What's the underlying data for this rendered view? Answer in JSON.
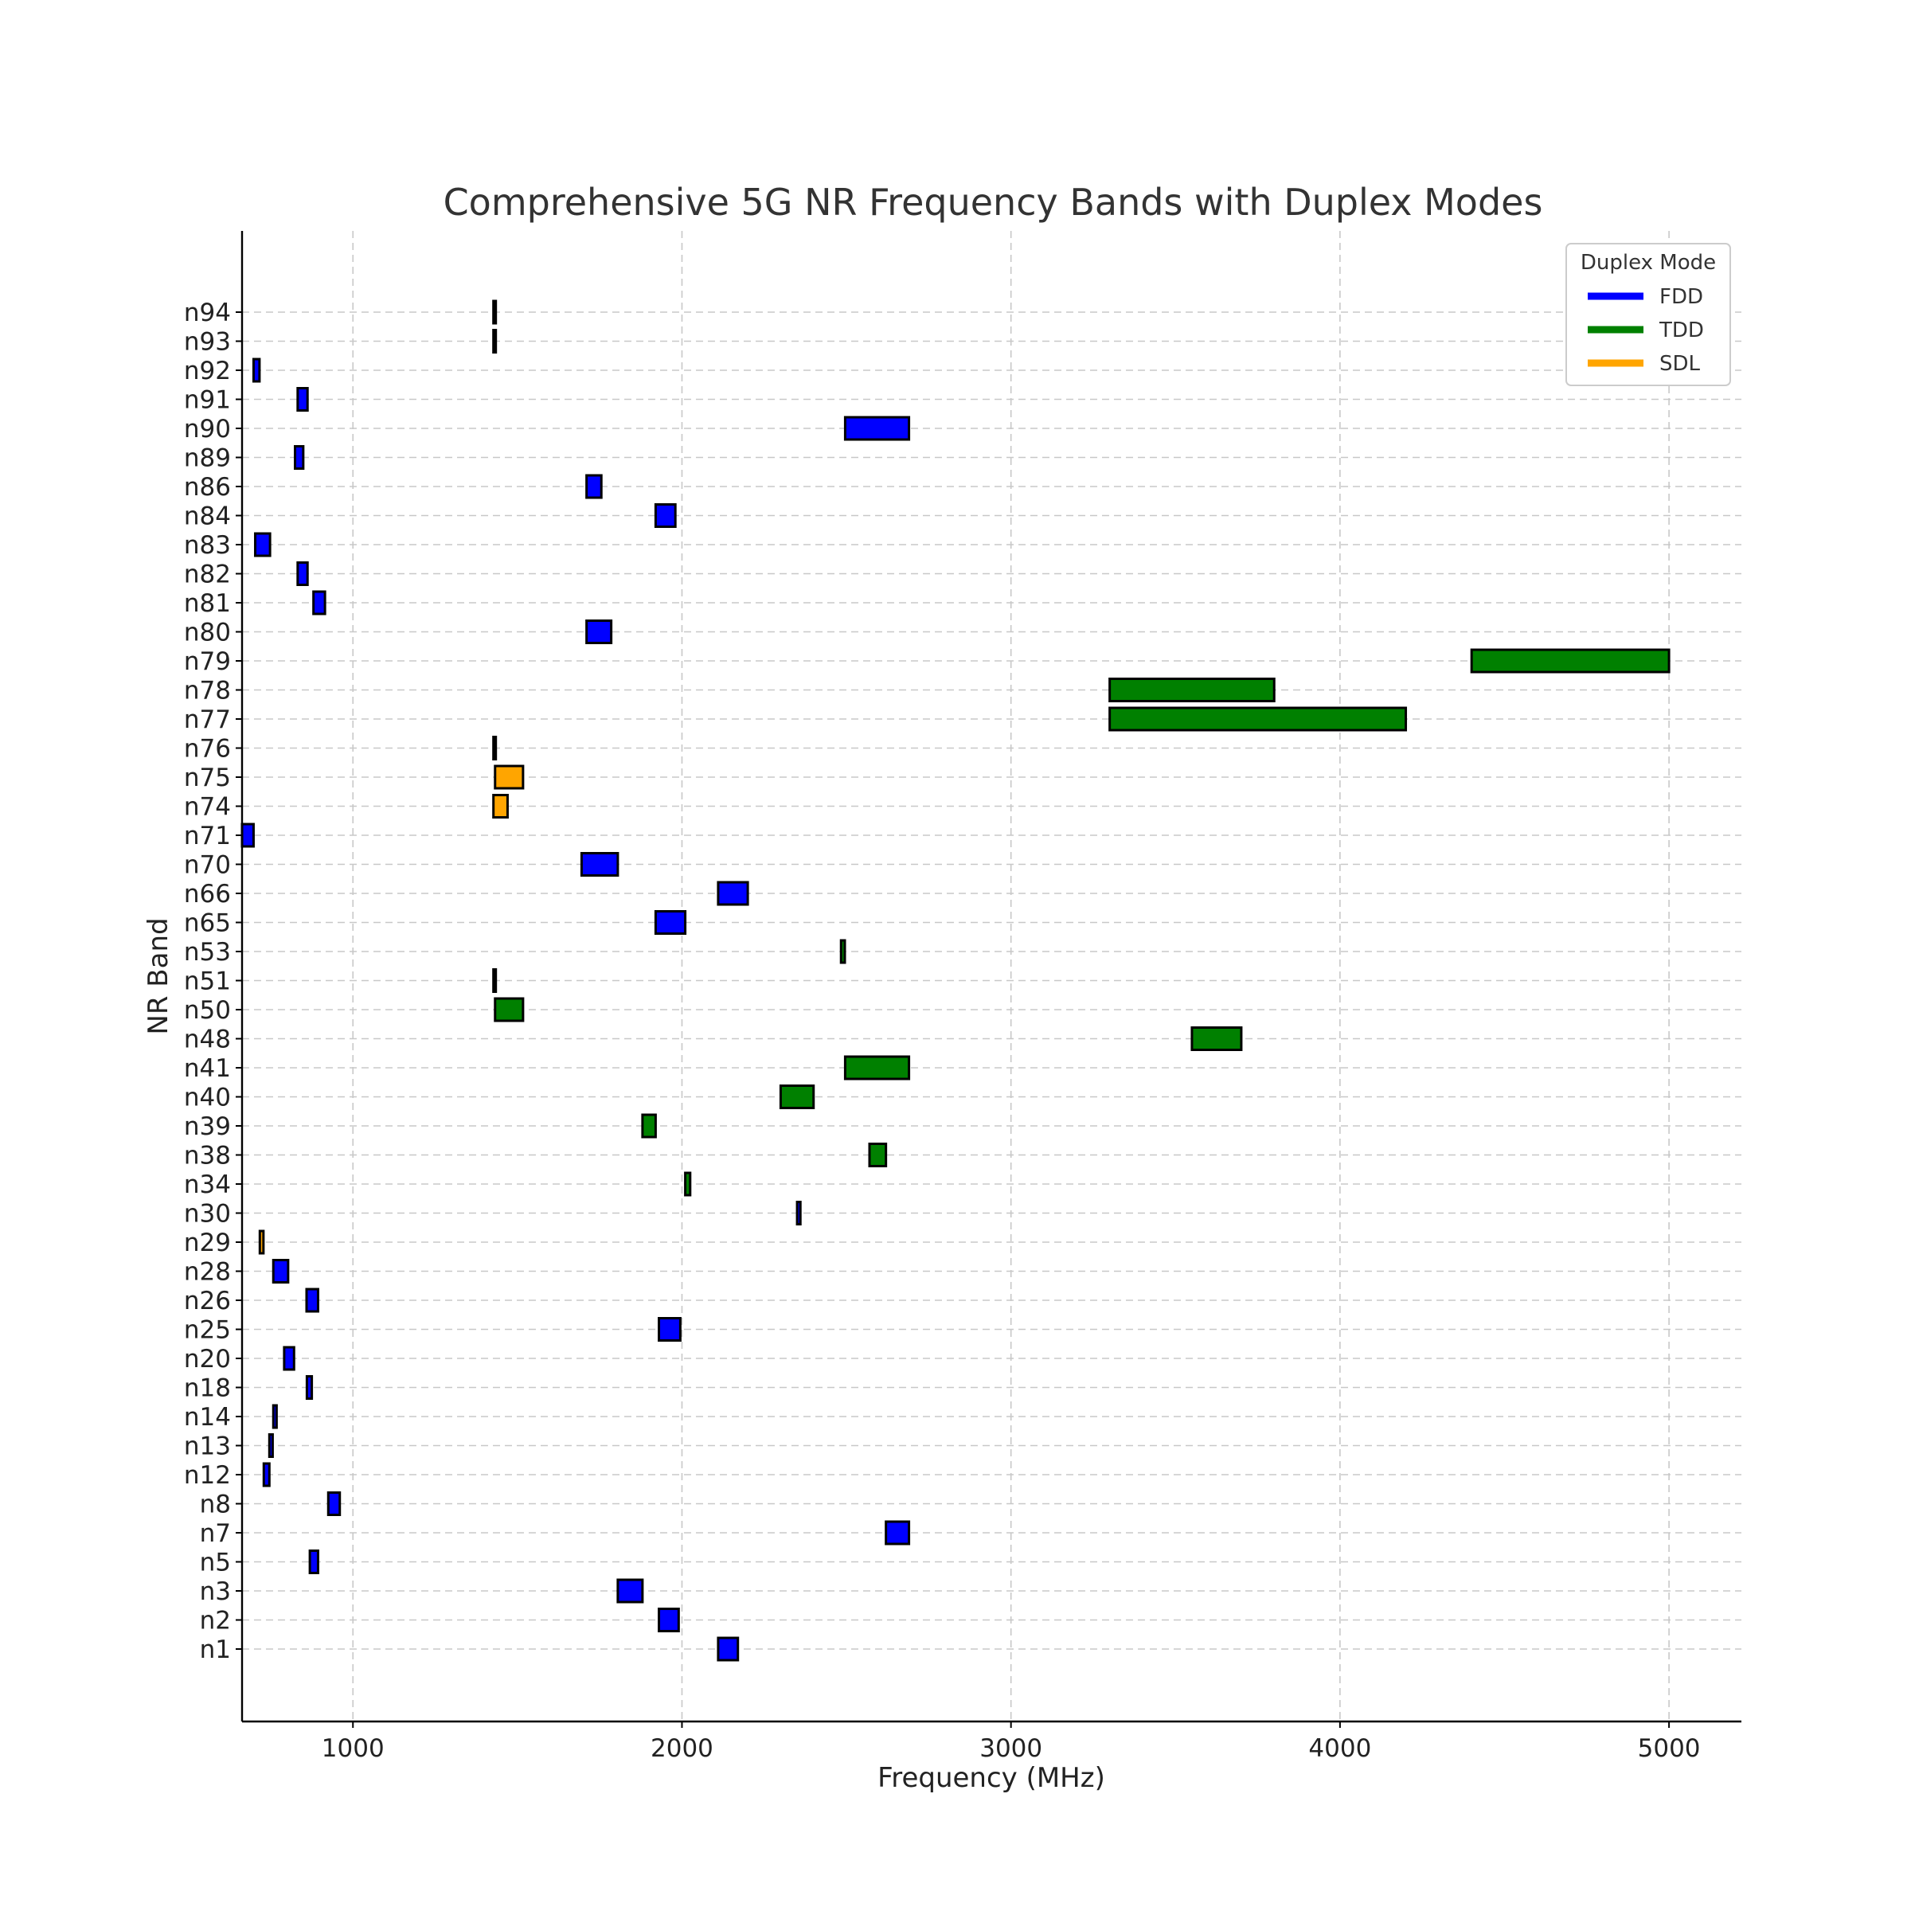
{
  "chart_data": {
    "type": "bar",
    "orientation": "horizontal-range",
    "title": "Comprehensive 5G NR Frequency Bands with Duplex Modes",
    "xlabel": "Frequency (MHz)",
    "ylabel": "NR Band",
    "xlim": [
      663,
      5220
    ],
    "xticks": [
      1000,
      2000,
      3000,
      4000,
      5000
    ],
    "grid": true,
    "legend": {
      "title": "Duplex Mode",
      "placement": "top-right",
      "entries": [
        {
          "label": "FDD",
          "color": "#0000ff"
        },
        {
          "label": "TDD",
          "color": "#008000"
        },
        {
          "label": "SDL",
          "color": "#ffa500"
        }
      ]
    },
    "colors": {
      "FDD": "#0000ff",
      "TDD": "#008000",
      "SDL": "#ffa500"
    },
    "bands": [
      {
        "name": "n1",
        "start": 2110,
        "end": 2170,
        "mode": "FDD"
      },
      {
        "name": "n2",
        "start": 1930,
        "end": 1990,
        "mode": "FDD"
      },
      {
        "name": "n3",
        "start": 1805,
        "end": 1880,
        "mode": "FDD"
      },
      {
        "name": "n5",
        "start": 869,
        "end": 894,
        "mode": "FDD"
      },
      {
        "name": "n7",
        "start": 2620,
        "end": 2690,
        "mode": "FDD"
      },
      {
        "name": "n8",
        "start": 925,
        "end": 960,
        "mode": "FDD"
      },
      {
        "name": "n12",
        "start": 729,
        "end": 746,
        "mode": "FDD"
      },
      {
        "name": "n13",
        "start": 746,
        "end": 756,
        "mode": "FDD"
      },
      {
        "name": "n14",
        "start": 758,
        "end": 768,
        "mode": "FDD"
      },
      {
        "name": "n18",
        "start": 860,
        "end": 875,
        "mode": "FDD"
      },
      {
        "name": "n20",
        "start": 791,
        "end": 821,
        "mode": "FDD"
      },
      {
        "name": "n25",
        "start": 1930,
        "end": 1995,
        "mode": "FDD"
      },
      {
        "name": "n26",
        "start": 859,
        "end": 894,
        "mode": "FDD"
      },
      {
        "name": "n28",
        "start": 758,
        "end": 803,
        "mode": "FDD"
      },
      {
        "name": "n29",
        "start": 717,
        "end": 728,
        "mode": "SDL"
      },
      {
        "name": "n30",
        "start": 2350,
        "end": 2360,
        "mode": "FDD"
      },
      {
        "name": "n34",
        "start": 2010,
        "end": 2025,
        "mode": "TDD"
      },
      {
        "name": "n38",
        "start": 2570,
        "end": 2620,
        "mode": "TDD"
      },
      {
        "name": "n39",
        "start": 1880,
        "end": 1920,
        "mode": "TDD"
      },
      {
        "name": "n40",
        "start": 2300,
        "end": 2400,
        "mode": "TDD"
      },
      {
        "name": "n41",
        "start": 2496,
        "end": 2690,
        "mode": "TDD"
      },
      {
        "name": "n48",
        "start": 3550,
        "end": 3700,
        "mode": "TDD"
      },
      {
        "name": "n50",
        "start": 1432,
        "end": 1517,
        "mode": "TDD"
      },
      {
        "name": "n51",
        "start": 1427,
        "end": 1432,
        "mode": "TDD"
      },
      {
        "name": "n53",
        "start": 2483.5,
        "end": 2495,
        "mode": "TDD"
      },
      {
        "name": "n65",
        "start": 1920,
        "end": 2010,
        "mode": "FDD"
      },
      {
        "name": "n66",
        "start": 2110,
        "end": 2200,
        "mode": "FDD"
      },
      {
        "name": "n70",
        "start": 1695,
        "end": 1805,
        "mode": "FDD"
      },
      {
        "name": "n71",
        "start": 617,
        "end": 698,
        "mode": "FDD"
      },
      {
        "name": "n74",
        "start": 1427,
        "end": 1470,
        "mode": "SDL"
      },
      {
        "name": "n75",
        "start": 1432,
        "end": 1517,
        "mode": "SDL"
      },
      {
        "name": "n76",
        "start": 1427,
        "end": 1432,
        "mode": "SDL"
      },
      {
        "name": "n77",
        "start": 3300,
        "end": 4200,
        "mode": "TDD"
      },
      {
        "name": "n78",
        "start": 3300,
        "end": 3800,
        "mode": "TDD"
      },
      {
        "name": "n79",
        "start": 4400,
        "end": 5000,
        "mode": "TDD"
      },
      {
        "name": "n80",
        "start": 1710,
        "end": 1785,
        "mode": "FDD"
      },
      {
        "name": "n81",
        "start": 880,
        "end": 915,
        "mode": "FDD"
      },
      {
        "name": "n82",
        "start": 832,
        "end": 862,
        "mode": "FDD"
      },
      {
        "name": "n83",
        "start": 703,
        "end": 748,
        "mode": "FDD"
      },
      {
        "name": "n84",
        "start": 1920,
        "end": 1980,
        "mode": "FDD"
      },
      {
        "name": "n86",
        "start": 1710,
        "end": 1755,
        "mode": "FDD"
      },
      {
        "name": "n89",
        "start": 824,
        "end": 849,
        "mode": "FDD"
      },
      {
        "name": "n90",
        "start": 2496,
        "end": 2690,
        "mode": "FDD"
      },
      {
        "name": "n91",
        "start": 832,
        "end": 862,
        "mode": "FDD"
      },
      {
        "name": "n92",
        "start": 698,
        "end": 716,
        "mode": "FDD"
      },
      {
        "name": "n93",
        "start": 1427,
        "end": 1432,
        "mode": "FDD"
      },
      {
        "name": "n94",
        "start": 1427,
        "end": 1432,
        "mode": "FDD"
      }
    ]
  }
}
